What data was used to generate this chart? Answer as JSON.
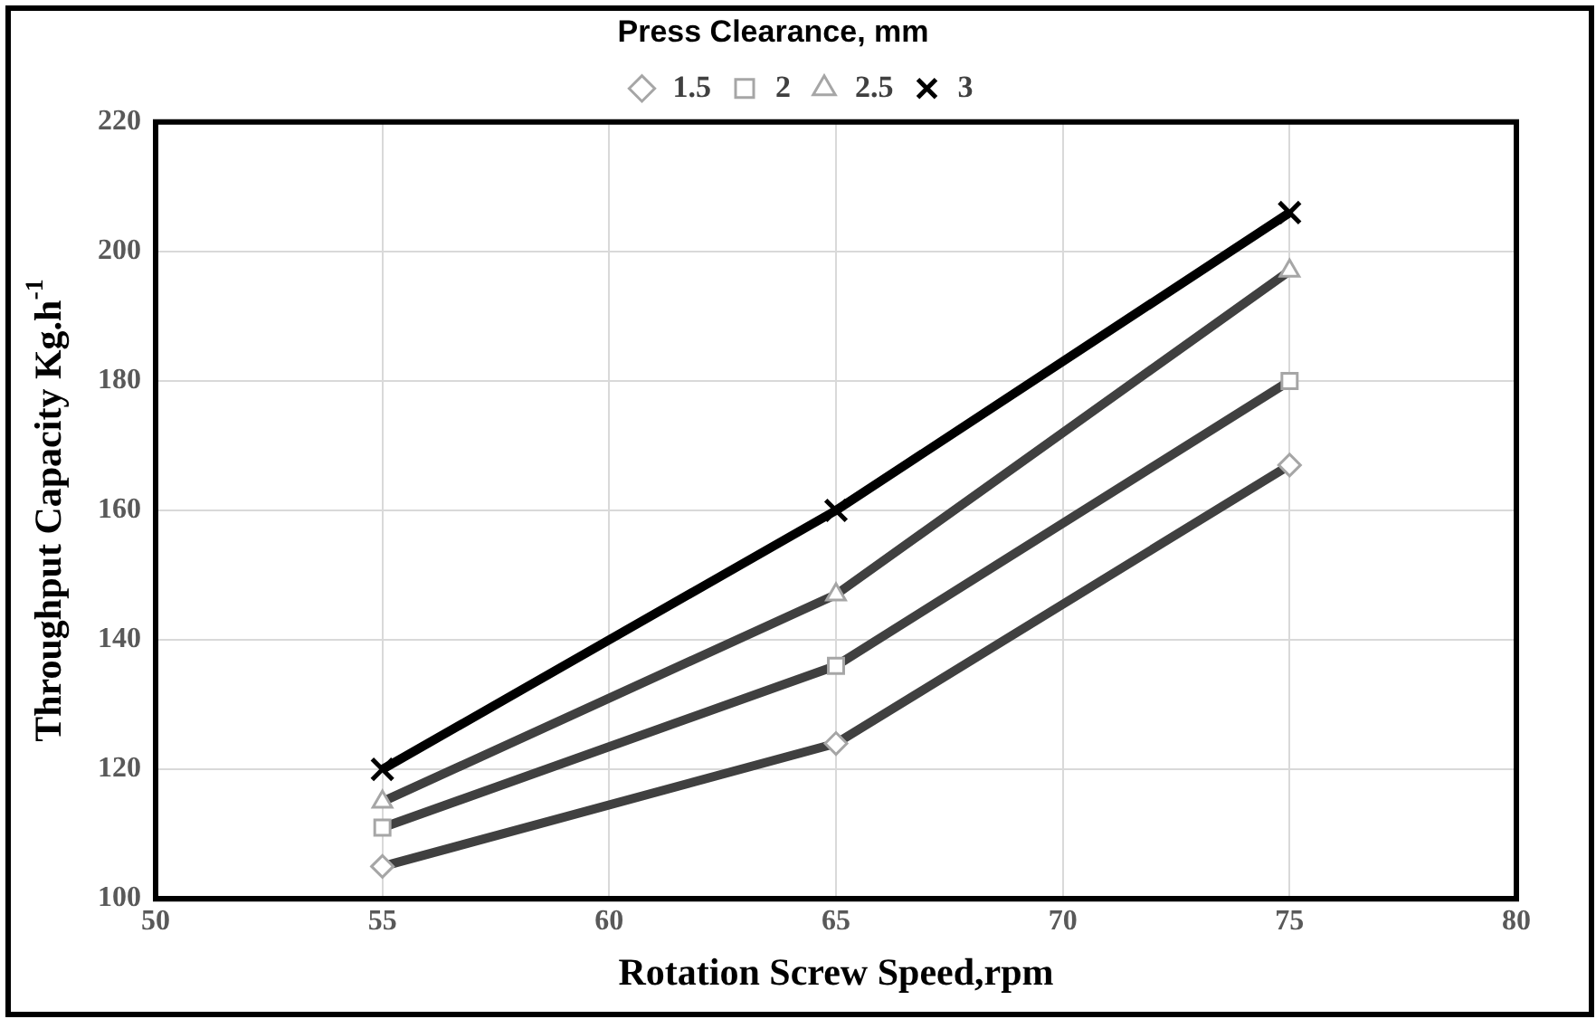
{
  "chart_data": {
    "type": "line",
    "xlabel": "Rotation Screw Speed,rpm",
    "ylabel": "Throughput Capacity Kg.h$^{-1}$",
    "legend_title": "Press Clearance, mm",
    "legend": "top",
    "grid": true,
    "line_style": "solid",
    "x": [
      55,
      65,
      75
    ],
    "xlim": [
      50,
      80
    ],
    "xticks": [
      50,
      55,
      60,
      65,
      70,
      75,
      80
    ],
    "ylim": [
      100,
      220
    ],
    "yticks": [
      100,
      120,
      140,
      160,
      180,
      200,
      220
    ],
    "series": [
      {
        "name": "1.5",
        "color": "#404040",
        "marker": "diamond",
        "values": [
          105,
          124,
          167
        ]
      },
      {
        "name": "2",
        "color": "#404040",
        "marker": "square",
        "values": [
          111,
          136,
          180
        ]
      },
      {
        "name": "2.5",
        "color": "#404040",
        "marker": "triangle",
        "values": [
          115,
          147,
          197
        ]
      },
      {
        "name": "3",
        "color": "#000000",
        "marker": "cross",
        "values": [
          120,
          160,
          206
        ]
      }
    ]
  }
}
